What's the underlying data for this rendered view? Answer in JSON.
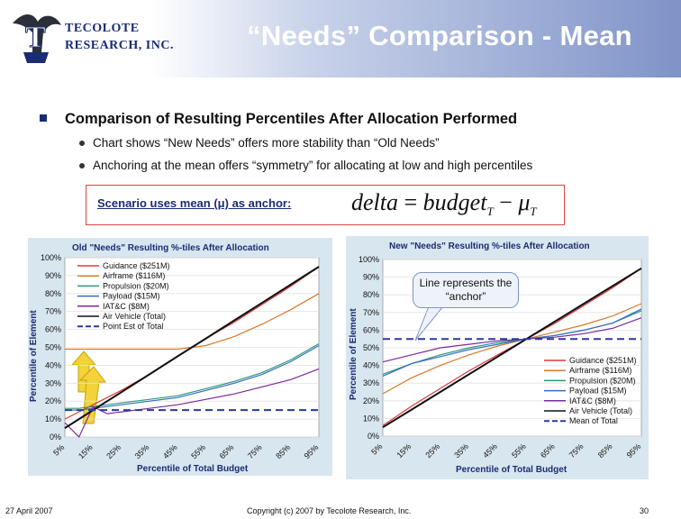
{
  "header": {
    "title": "“Needs” Comparison - Mean",
    "logo_line1": "TECOLOTE",
    "logo_line2": "RESEARCH, INC.",
    "logo_letter": "T",
    "accent_color": "#1a2c74"
  },
  "body": {
    "main_bullet": "Comparison of Resulting Percentiles After Allocation Performed",
    "sub_bullets": [
      "Chart shows “New Needs” offers more stability than “Old Needs”",
      "Anchoring at the mean offers “symmetry” for allocating at low and high percentiles"
    ],
    "scenario_label": "Scenario uses mean (μ) as anchor:",
    "formula": {
      "lhs": "delta",
      "eq": "=",
      "term1": "budget",
      "sub1": "T",
      "minus": "−",
      "term2": "μ",
      "sub2": "T"
    },
    "callout": "Line represents the “anchor”"
  },
  "chart_data": [
    {
      "type": "line",
      "title": "Old \"Needs\" Resulting %-tiles After Allocation",
      "xlabel": "Percentile of Total Budget",
      "ylabel": "Percentile of Element",
      "x": [
        5,
        10,
        15,
        20,
        25,
        35,
        45,
        55,
        65,
        75,
        85,
        95
      ],
      "x_tick_labels": [
        "5%",
        "15%",
        "25%",
        "35%",
        "45%",
        "55%",
        "65%",
        "75%",
        "85%",
        "95%"
      ],
      "y_tick_labels": [
        "0%",
        "10%",
        "20%",
        "30%",
        "40%",
        "50%",
        "60%",
        "70%",
        "80%",
        "90%",
        "100%"
      ],
      "xlim": [
        5,
        95
      ],
      "ylim": [
        0,
        100
      ],
      "legend_position": "top-left",
      "series": [
        {
          "name": "Guidance ($251M)",
          "color": "#d93a3a",
          "dash": false,
          "values": [
            10,
            14,
            18,
            22,
            26,
            35,
            45,
            55,
            64,
            74,
            84,
            95
          ]
        },
        {
          "name": "Airframe ($116M)",
          "color": "#d67a2a",
          "dash": false,
          "values": [
            49,
            49,
            49,
            49,
            49,
            49,
            49,
            51,
            56,
            63,
            71,
            80
          ]
        },
        {
          "name": "Propulsion ($20M)",
          "color": "#2a9a7a",
          "dash": false,
          "values": [
            16,
            16,
            17,
            18,
            19,
            21,
            23,
            27,
            31,
            36,
            43,
            52
          ]
        },
        {
          "name": "Payload ($15M)",
          "color": "#3a6ac8",
          "dash": false,
          "values": [
            15,
            15,
            16,
            17,
            18,
            20,
            22,
            26,
            30,
            35,
            42,
            51
          ]
        },
        {
          "name": "IAT&C ($8M)",
          "color": "#7a2a9a",
          "dash": false,
          "values": [
            8,
            0,
            17,
            13,
            14,
            16,
            18,
            21,
            24,
            28,
            32,
            38
          ]
        },
        {
          "name": "Air Vehicle (Total)",
          "color": "#111111",
          "dash": false,
          "values": [
            5,
            10,
            15,
            20,
            25,
            35,
            45,
            55,
            65,
            75,
            85,
            95
          ]
        },
        {
          "name": "Point Est of Total",
          "color": "#2a3a9a",
          "dash": true,
          "values": [
            15,
            15,
            15,
            15,
            15,
            15,
            15,
            15,
            15,
            15,
            15,
            15
          ]
        }
      ]
    },
    {
      "type": "line",
      "title": "New \"Needs\" Resulting %-tiles After Allocation",
      "xlabel": "Percentile of Total Budget",
      "ylabel": "Percentile of Element",
      "x": [
        5,
        15,
        25,
        35,
        45,
        55,
        65,
        75,
        85,
        95
      ],
      "x_tick_labels": [
        "5%",
        "15%",
        "25%",
        "35%",
        "45%",
        "55%",
        "65%",
        "75%",
        "85%",
        "95%"
      ],
      "y_tick_labels": [
        "0%",
        "10%",
        "20%",
        "30%",
        "40%",
        "50%",
        "60%",
        "70%",
        "80%",
        "90%",
        "100%"
      ],
      "xlim": [
        5,
        95
      ],
      "ylim": [
        0,
        100
      ],
      "legend_position": "bottom-right",
      "series": [
        {
          "name": "Guidance ($251M)",
          "color": "#d93a3a",
          "dash": false,
          "values": [
            6,
            17,
            27,
            37,
            46,
            55,
            64,
            74,
            84,
            95
          ]
        },
        {
          "name": "Airframe ($116M)",
          "color": "#d67a2a",
          "dash": false,
          "values": [
            24,
            33,
            40,
            46,
            51,
            55,
            59,
            63,
            68,
            75
          ]
        },
        {
          "name": "Propulsion ($20M)",
          "color": "#2a9a7a",
          "dash": false,
          "values": [
            35,
            41,
            46,
            50,
            53,
            55,
            57,
            60,
            64,
            71
          ]
        },
        {
          "name": "Payload ($15M)",
          "color": "#3a6ac8",
          "dash": false,
          "values": [
            34,
            41,
            45,
            49,
            52,
            55,
            57,
            60,
            64,
            72
          ]
        },
        {
          "name": "IAT&C ($8M)",
          "color": "#7a2a9a",
          "dash": false,
          "values": [
            42,
            46,
            50,
            52,
            54,
            55,
            56,
            58,
            61,
            67
          ]
        },
        {
          "name": "Air Vehicle (Total)",
          "color": "#111111",
          "dash": false,
          "values": [
            5,
            15,
            25,
            35,
            45,
            55,
            65,
            75,
            85,
            95
          ]
        },
        {
          "name": "Mean of Total",
          "color": "#2a3a9a",
          "dash": true,
          "values": [
            55,
            55,
            55,
            55,
            55,
            55,
            55,
            55,
            55,
            55
          ]
        }
      ]
    }
  ],
  "footer": {
    "date": "27 April 2007",
    "copyright": "Copyright (c) 2007 by Tecolote Research, Inc.",
    "page_number": "30"
  }
}
